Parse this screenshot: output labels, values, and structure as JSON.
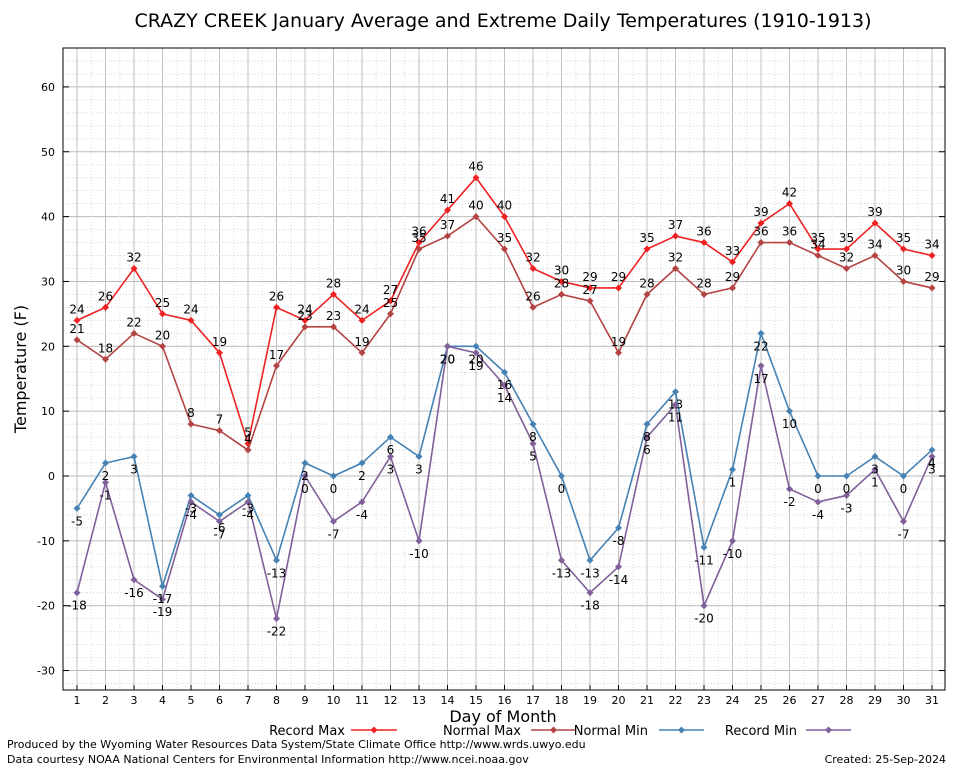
{
  "chart_data": {
    "type": "line",
    "title": "CRAZY CREEK January Average and Extreme Daily Temperatures (1910-1913)",
    "xlabel": "Day of Month",
    "ylabel": "Temperature (F)",
    "ylim": [
      -33,
      66
    ],
    "yticks": [
      -30,
      -20,
      -10,
      0,
      10,
      20,
      30,
      40,
      50,
      60
    ],
    "x": [
      1,
      2,
      3,
      4,
      5,
      6,
      7,
      8,
      9,
      10,
      11,
      12,
      13,
      14,
      15,
      16,
      17,
      18,
      19,
      20,
      21,
      22,
      23,
      24,
      25,
      26,
      27,
      28,
      29,
      30,
      31
    ],
    "grid": true,
    "legend_position": "bottom",
    "series": [
      {
        "name": "Record Max",
        "color": "#ee2222",
        "values": [
          24,
          26,
          32,
          25,
          24,
          19,
          5,
          26,
          24,
          28,
          24,
          27,
          36,
          41,
          46,
          40,
          32,
          30,
          29,
          29,
          35,
          37,
          36,
          33,
          39,
          42,
          35,
          35,
          39,
          35,
          34
        ]
      },
      {
        "name": "Normal Max",
        "color": "#b44444",
        "values": [
          21,
          18,
          22,
          20,
          8,
          7,
          4,
          17,
          23,
          23,
          19,
          25,
          35,
          37,
          40,
          35,
          26,
          28,
          27,
          19,
          28,
          32,
          28,
          29,
          36,
          36,
          34,
          32,
          34,
          30,
          29
        ]
      },
      {
        "name": "Normal Min",
        "color": "#4682b4",
        "values": [
          -5,
          2,
          3,
          -17,
          -3,
          -6,
          -3,
          -13,
          2,
          0,
          2,
          6,
          3,
          20,
          20,
          16,
          8,
          0,
          -13,
          -8,
          8,
          13,
          -11,
          1,
          22,
          10,
          0,
          0,
          3,
          0,
          4
        ]
      },
      {
        "name": "Record Min",
        "color": "#80609a",
        "values": [
          -18,
          -1,
          -16,
          -19,
          -4,
          -7,
          -4,
          -22,
          0,
          -7,
          -4,
          3,
          -10,
          20,
          19,
          14,
          5,
          -13,
          -18,
          -14,
          6,
          11,
          -20,
          -10,
          17,
          -2,
          -4,
          -3,
          1,
          -7,
          3
        ]
      }
    ]
  },
  "footer": {
    "line1": "Produced by the Wyoming Water Resources Data System/State Climate Office http://www.wrds.uwyo.edu",
    "line2": "Data courtesy NOAA National Centers for Environmental Information http://www.ncei.noaa.gov",
    "created": "Created:  25-Sep-2024"
  }
}
